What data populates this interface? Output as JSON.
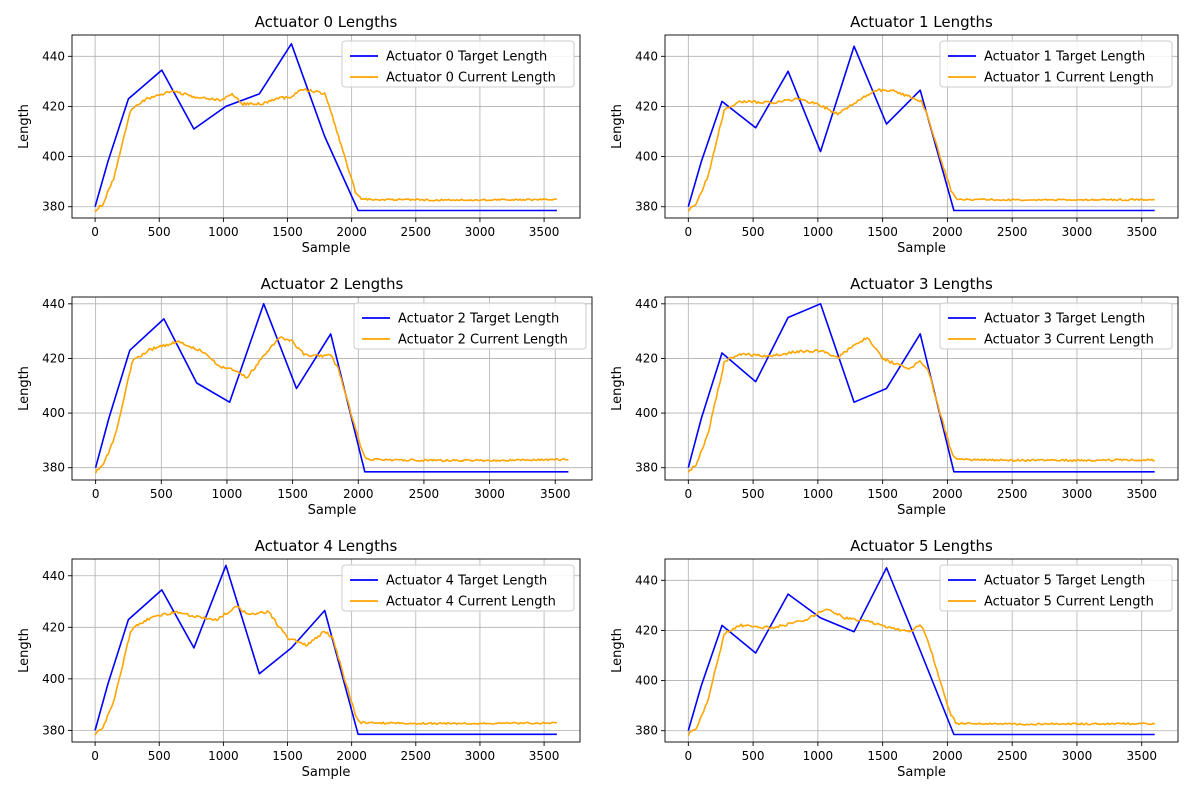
{
  "colors": {
    "target": "#0000ff",
    "current": "#ffa500",
    "grid": "#b0b0b0",
    "axes": "#000000"
  },
  "chart_data": [
    {
      "type": "line",
      "title": "Actuator 0 Lengths",
      "xlabel": "Sample",
      "ylabel": "Length",
      "xlim": [
        -180,
        3780
      ],
      "ylim": [
        375.5,
        448.5
      ],
      "xticks": [
        0,
        500,
        1000,
        1500,
        2000,
        2500,
        3000,
        3500
      ],
      "yticks": [
        380,
        400,
        420,
        440
      ],
      "grid": true,
      "legend": "top-right",
      "series": [
        {
          "name": "Actuator 0 Target Length",
          "color": "#0000ff",
          "x": [
            0,
            100,
            260,
            520,
            770,
            1020,
            1280,
            1530,
            1790,
            2050,
            3600
          ],
          "y": [
            380,
            398,
            423,
            434.5,
            411,
            420,
            425,
            445,
            408,
            378.5,
            378.5
          ]
        },
        {
          "name": "Actuator 0 Current Length",
          "color": "#ffa500",
          "x": [
            0,
            60,
            150,
            280,
            400,
            520,
            620,
            750,
            980,
            1070,
            1150,
            1300,
            1420,
            1540,
            1600,
            1700,
            1790,
            1850,
            1950,
            2030,
            2070,
            2500,
            3000,
            3600
          ],
          "y": [
            378.5,
            381,
            392,
            419,
            423,
            425,
            426,
            424,
            422.5,
            425,
            421,
            421,
            423,
            424,
            427,
            426,
            425,
            416,
            399,
            386,
            383,
            382.7,
            382.7,
            382.9
          ]
        }
      ]
    },
    {
      "type": "line",
      "title": "Actuator 1 Lengths",
      "xlabel": "Sample",
      "ylabel": "Length",
      "xlim": [
        -180,
        3780
      ],
      "ylim": [
        375.5,
        448.5
      ],
      "xticks": [
        0,
        500,
        1000,
        1500,
        2000,
        2500,
        3000,
        3500
      ],
      "yticks": [
        380,
        400,
        420,
        440
      ],
      "grid": true,
      "legend": "top-right",
      "series": [
        {
          "name": "Actuator 1 Target Length",
          "color": "#0000ff",
          "x": [
            0,
            100,
            260,
            520,
            770,
            1020,
            1280,
            1530,
            1790,
            2050,
            3600
          ],
          "y": [
            380,
            398,
            422,
            411.5,
            434,
            402,
            444,
            413,
            426.5,
            378.5,
            378.5
          ]
        },
        {
          "name": "Actuator 1 Current Length",
          "color": "#ffa500",
          "x": [
            0,
            60,
            150,
            280,
            400,
            650,
            850,
            1000,
            1150,
            1300,
            1450,
            1600,
            1800,
            1850,
            1950,
            2030,
            2070,
            2500,
            3000,
            3600
          ],
          "y": [
            378.5,
            381,
            392,
            419,
            422,
            421.5,
            423,
            421,
            417,
            422,
            426.5,
            426,
            422,
            416,
            399,
            386,
            383,
            382.7,
            382.7,
            382.9
          ]
        }
      ]
    },
    {
      "type": "line",
      "title": "Actuator 2 Lengths",
      "xlabel": "Sample",
      "ylabel": "Length",
      "xlim": [
        -180,
        3780
      ],
      "ylim": [
        375.5,
        442.5
      ],
      "xticks": [
        0,
        500,
        1000,
        1500,
        2000,
        2500,
        3000,
        3500
      ],
      "yticks": [
        380,
        400,
        420,
        440
      ],
      "grid": true,
      "legend": "top-right",
      "series": [
        {
          "name": "Actuator 2 Target Length",
          "color": "#0000ff",
          "x": [
            0,
            100,
            260,
            520,
            770,
            1020,
            1280,
            1530,
            1790,
            2050,
            3600
          ],
          "y": [
            380,
            398,
            423,
            434.5,
            411,
            404,
            440,
            409,
            429,
            378.5,
            378.5
          ]
        },
        {
          "name": "Actuator 2 Current Length",
          "color": "#ffa500",
          "x": [
            0,
            60,
            150,
            280,
            400,
            620,
            800,
            950,
            1100,
            1150,
            1300,
            1400,
            1500,
            1600,
            1700,
            1790,
            1850,
            1950,
            2030,
            2070,
            2500,
            3000,
            3600
          ],
          "y": [
            378.5,
            381,
            392,
            419,
            423,
            426,
            423,
            417,
            415,
            413,
            422,
            428,
            426,
            421,
            421,
            421,
            416,
            399,
            386,
            383,
            382.7,
            382.7,
            382.9
          ]
        }
      ]
    },
    {
      "type": "line",
      "title": "Actuator 3 Lengths",
      "xlabel": "Sample",
      "ylabel": "Length",
      "xlim": [
        -180,
        3780
      ],
      "ylim": [
        375.5,
        442.5
      ],
      "xticks": [
        0,
        500,
        1000,
        1500,
        2000,
        2500,
        3000,
        3500
      ],
      "yticks": [
        380,
        400,
        420,
        440
      ],
      "grid": true,
      "legend": "top-right",
      "series": [
        {
          "name": "Actuator 3 Target Length",
          "color": "#0000ff",
          "x": [
            0,
            100,
            260,
            520,
            770,
            1020,
            1280,
            1530,
            1790,
            2050,
            3600
          ],
          "y": [
            380,
            398,
            422,
            411.5,
            435,
            440,
            404,
            409,
            429,
            378.5,
            378.5
          ]
        },
        {
          "name": "Actuator 3 Current Length",
          "color": "#ffa500",
          "x": [
            0,
            60,
            150,
            280,
            400,
            650,
            850,
            1020,
            1150,
            1250,
            1380,
            1500,
            1700,
            1790,
            1850,
            1950,
            2030,
            2070,
            2500,
            3000,
            3600
          ],
          "y": [
            378.5,
            381,
            392,
            419,
            421.5,
            421,
            422.5,
            423,
            420,
            424,
            427.5,
            420,
            416,
            419,
            416,
            399,
            386,
            383,
            382.7,
            382.7,
            382.9
          ]
        }
      ]
    },
    {
      "type": "line",
      "title": "Actuator 4 Lengths",
      "xlabel": "Sample",
      "ylabel": "Length",
      "xlim": [
        -180,
        3780
      ],
      "ylim": [
        375.5,
        446.5
      ],
      "xticks": [
        0,
        500,
        1000,
        1500,
        2000,
        2500,
        3000,
        3500
      ],
      "yticks": [
        380,
        400,
        420,
        440
      ],
      "grid": true,
      "legend": "top-right",
      "series": [
        {
          "name": "Actuator 4 Target Length",
          "color": "#0000ff",
          "x": [
            0,
            100,
            260,
            520,
            770,
            1020,
            1280,
            1530,
            1790,
            2050,
            3600
          ],
          "y": [
            380,
            398,
            423,
            434.5,
            412,
            444,
            402,
            412,
            426.5,
            378.5,
            378.5
          ]
        },
        {
          "name": "Actuator 4 Current Length",
          "color": "#ffa500",
          "x": [
            0,
            60,
            150,
            280,
            400,
            620,
            800,
            950,
            1100,
            1200,
            1350,
            1500,
            1650,
            1790,
            1850,
            1950,
            2030,
            2070,
            2500,
            3000,
            3600
          ],
          "y": [
            378.5,
            381,
            392,
            419,
            423,
            426,
            424,
            423,
            428,
            425,
            426,
            416,
            413,
            418.5,
            416,
            399,
            386,
            383,
            382.7,
            382.7,
            382.9
          ]
        }
      ]
    },
    {
      "type": "line",
      "title": "Actuator 5 Lengths",
      "xlabel": "Sample",
      "ylabel": "Length",
      "xlim": [
        -180,
        3780
      ],
      "ylim": [
        375.5,
        448.5
      ],
      "xticks": [
        0,
        500,
        1000,
        1500,
        2000,
        2500,
        3000,
        3500
      ],
      "yticks": [
        380,
        400,
        420,
        440
      ],
      "grid": true,
      "legend": "top-right",
      "series": [
        {
          "name": "Actuator 5 Target Length",
          "color": "#0000ff",
          "x": [
            0,
            100,
            260,
            520,
            770,
            1020,
            1280,
            1530,
            1790,
            2050,
            3600
          ],
          "y": [
            380,
            398,
            422,
            411,
            434.5,
            425,
            419.5,
            445,
            412,
            378.5,
            378.5
          ]
        },
        {
          "name": "Actuator 5 Current Length",
          "color": "#ffa500",
          "x": [
            0,
            60,
            150,
            280,
            400,
            650,
            900,
            1070,
            1200,
            1400,
            1550,
            1700,
            1800,
            1850,
            1950,
            2030,
            2070,
            2500,
            3000,
            3600
          ],
          "y": [
            378.5,
            381,
            392,
            419,
            422,
            421,
            424,
            429,
            425,
            423.5,
            421,
            419.5,
            422,
            416,
            399,
            386,
            383,
            382.7,
            382.7,
            382.9
          ]
        }
      ]
    }
  ]
}
